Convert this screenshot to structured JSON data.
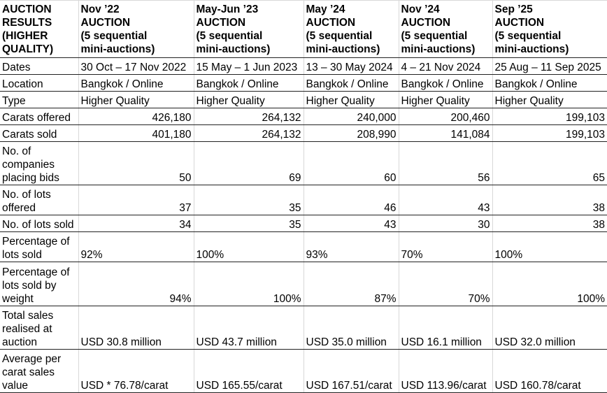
{
  "header": {
    "corner": [
      "AUCTION",
      "RESULTS",
      "(HIGHER",
      "QUALITY)"
    ],
    "columns": [
      {
        "title": "Nov ’22",
        "line2": "AUCTION",
        "line3": "(5 sequential",
        "line4": "mini-auctions)"
      },
      {
        "title": "May-Jun ’23",
        "line2": "AUCTION",
        "line3": "(5 sequential",
        "line4": "mini-auctions)"
      },
      {
        "title": "May ’24",
        "line2": "AUCTION",
        "line3": "(5 sequential",
        "line4": "mini-auctions)"
      },
      {
        "title": "Nov ’24",
        "line2": "AUCTION",
        "line3": "(5 sequential",
        "line4": "mini-auctions)"
      },
      {
        "title": "Sep ’25",
        "line2": "AUCTION",
        "line3": "(5 sequential",
        "line4": "mini-auctions)"
      }
    ]
  },
  "rows": [
    {
      "label": [
        "Dates"
      ],
      "align": "left",
      "values": [
        "30 Oct – 17 Nov 2022",
        "15 May – 1 Jun 2023",
        "13 – 30 May 2024",
        "4 – 21 Nov 2024",
        "25 Aug – 11 Sep 2025"
      ]
    },
    {
      "label": [
        "Location"
      ],
      "align": "left",
      "values": [
        "Bangkok / Online",
        "Bangkok / Online",
        "Bangkok / Online",
        "Bangkok / Online",
        "Bangkok / Online"
      ]
    },
    {
      "label": [
        "Type"
      ],
      "align": "left",
      "values": [
        "Higher Quality",
        "Higher Quality",
        "Higher Quality",
        "Higher Quality",
        "Higher Quality"
      ]
    },
    {
      "label": [
        "Carats offered"
      ],
      "align": "right",
      "values": [
        "426,180",
        "264,132",
        "240,000",
        "200,460",
        "199,103"
      ]
    },
    {
      "label": [
        "Carats sold"
      ],
      "align": "right",
      "values": [
        "401,180",
        "264,132",
        "208,990",
        "141,084",
        "199,103"
      ]
    },
    {
      "label": [
        "No. of",
        "companies",
        "placing bids"
      ],
      "align": "right",
      "values": [
        "50",
        "69",
        "60",
        "56",
        "65"
      ]
    },
    {
      "label": [
        "No. of lots",
        "offered"
      ],
      "align": "right",
      "values": [
        "37",
        "35",
        "46",
        "43",
        "38"
      ]
    },
    {
      "label": [
        "No. of lots sold"
      ],
      "align": "right",
      "values": [
        "34",
        "35",
        "43",
        "30",
        "38"
      ]
    },
    {
      "label": [
        "Percentage of",
        "lots sold"
      ],
      "align": "left",
      "values": [
        "92%",
        "100%",
        "93%",
        "70%",
        "100%"
      ]
    },
    {
      "label": [
        "Percentage of",
        "lots sold by",
        "weight"
      ],
      "align": "right",
      "values": [
        "94%",
        "100%",
        "87%",
        "70%",
        "100%"
      ]
    },
    {
      "label": [
        "Total sales",
        "realised at",
        "auction"
      ],
      "align": "left",
      "values": [
        "USD 30.8 million",
        "USD 43.7 million",
        "USD 35.0 million",
        "USD 16.1 million",
        "USD 32.0 million"
      ]
    },
    {
      "label": [
        "Average per",
        "carat sales",
        "value"
      ],
      "align": "left",
      "values": [
        "USD * 76.78/carat",
        "USD 165.55/carat",
        "USD 167.51/carat",
        "USD 113.96/carat",
        "USD 160.78/carat"
      ]
    }
  ]
}
